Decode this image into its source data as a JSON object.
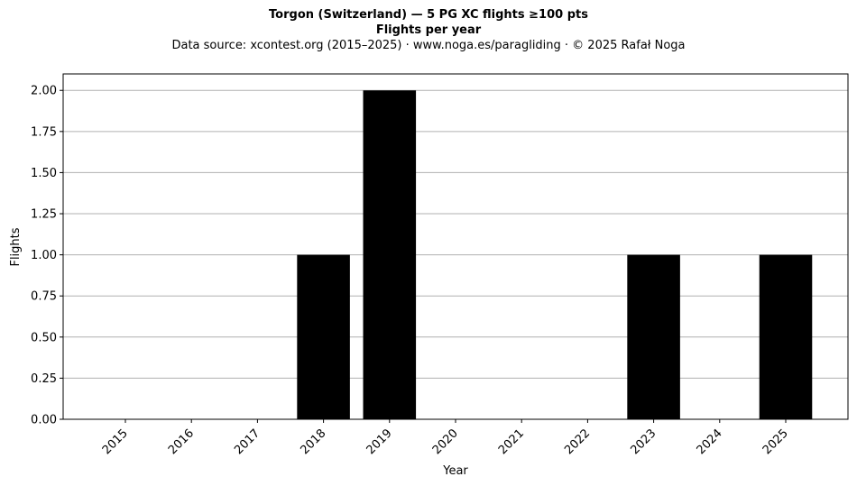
{
  "chart_data": {
    "type": "bar",
    "title": "Torgon (Switzerland)  —  5 PG XC flights ≥100 pts",
    "subtitle": "Flights per year",
    "source_note": "Data source: xcontest.org (2015–2025)  ·  www.noga.es/paragliding  ·  © 2025 Rafał Noga",
    "xlabel": "Year",
    "ylabel": "Flights",
    "categories": [
      "2015",
      "2016",
      "2017",
      "2018",
      "2019",
      "2020",
      "2021",
      "2022",
      "2023",
      "2024",
      "2025"
    ],
    "values": [
      0,
      0,
      0,
      1,
      2,
      0,
      0,
      0,
      1,
      0,
      1
    ],
    "ylim": [
      0,
      2.1
    ],
    "yticks": [
      0,
      0.25,
      0.5,
      0.75,
      1.0,
      1.25,
      1.5,
      1.75,
      2.0
    ],
    "ytick_labels": [
      "0.00",
      "0.25",
      "0.50",
      "0.75",
      "1.00",
      "1.25",
      "1.50",
      "1.75",
      "2.00"
    ],
    "grid": "horizontal",
    "bar_color": "#000000",
    "grid_color": "#b0b0b0"
  }
}
